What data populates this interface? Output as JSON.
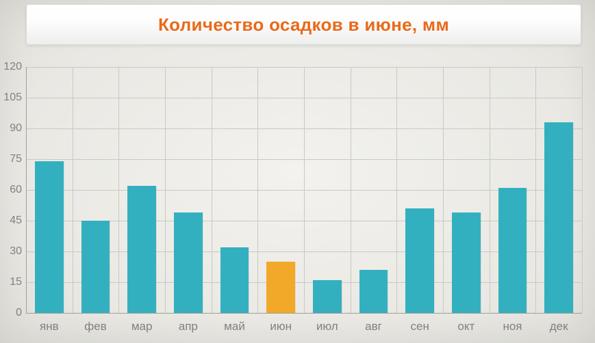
{
  "chart": {
    "type": "bar",
    "title": "Количество осадков в июне, мм",
    "title_color": "#e86a1a",
    "title_fontsize": 26,
    "categories": [
      "янв",
      "фев",
      "мар",
      "апр",
      "май",
      "июн",
      "июл",
      "авг",
      "сен",
      "окт",
      "ноя",
      "дек"
    ],
    "values": [
      74,
      45,
      62,
      49,
      32,
      25,
      16,
      21,
      51,
      49,
      61,
      93
    ],
    "bar_colors": [
      "#33b0bf",
      "#33b0bf",
      "#33b0bf",
      "#33b0bf",
      "#33b0bf",
      "#f2a828",
      "#33b0bf",
      "#33b0bf",
      "#33b0bf",
      "#33b0bf",
      "#33b0bf",
      "#33b0bf"
    ],
    "highlight_index": 5,
    "ylim": [
      0,
      120
    ],
    "ytick_step": 15,
    "yticks": [
      0,
      15,
      30,
      45,
      60,
      75,
      90,
      105,
      120
    ],
    "label_fontsize": 16,
    "label_color": "#808080",
    "grid_color": "#c9c8c4",
    "axis_color": "#9f9e9a",
    "background_color": "#ecebe7",
    "bar_width_ratio": 0.62
  }
}
